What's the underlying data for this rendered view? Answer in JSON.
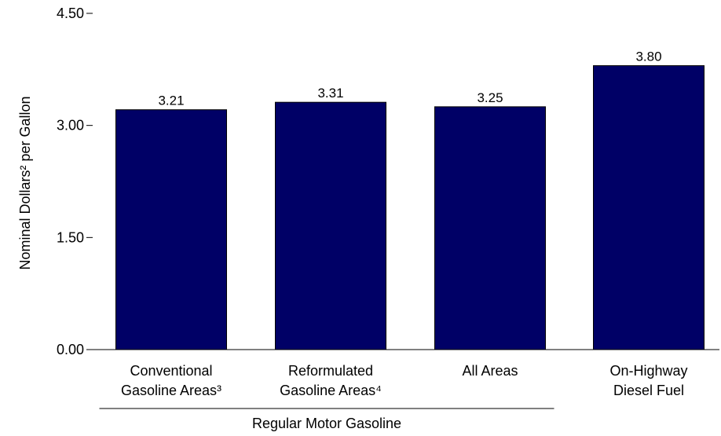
{
  "chart_data": {
    "type": "bar",
    "categories": [
      [
        "Conventional",
        "Gasoline Areas³"
      ],
      [
        "Reformulated",
        "Gasoline Areas⁴"
      ],
      [
        "All Areas"
      ],
      [
        "On-Highway",
        "Diesel Fuel"
      ]
    ],
    "values": [
      3.21,
      3.31,
      3.25,
      3.8
    ],
    "value_labels": [
      "3.21",
      "3.31",
      "3.25",
      "3.80"
    ],
    "ylabel": "Nominal Dollars² per Gallon",
    "ylim": [
      0,
      4.5
    ],
    "yticks": [
      0,
      1.5,
      3,
      4.5
    ],
    "ytick_labels": [
      "0.00",
      "1.50",
      "3.00",
      "4.50"
    ],
    "group_label": "Regular Motor Gasoline",
    "group_categories": [
      0,
      1,
      2
    ],
    "bar_color": "#000066",
    "grid": false,
    "legend": "none"
  }
}
